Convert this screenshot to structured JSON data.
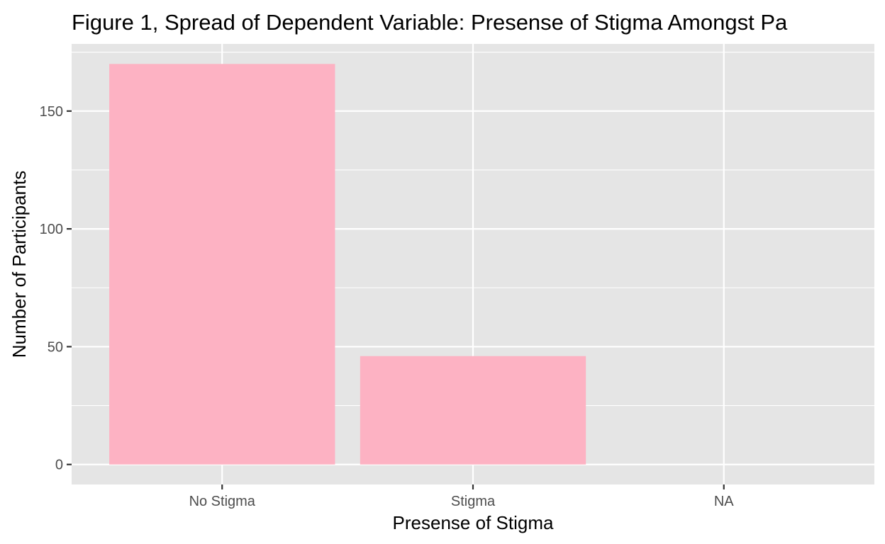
{
  "chart_data": {
    "type": "bar",
    "title": "Figure 1, Spread of Dependent Variable: Presense of Stigma Amongst Pa",
    "xlabel": "Presense of Stigma",
    "ylabel": "Number of Participants",
    "categories": [
      "No Stigma",
      "Stigma",
      "NA"
    ],
    "values": [
      170,
      46,
      0
    ],
    "ylim": [
      -8.5,
      178.5
    ],
    "yticks": [
      0,
      50,
      100,
      150
    ],
    "ytick_labels": [
      "0",
      "50",
      "100",
      "150"
    ],
    "grid": true,
    "legend": "none",
    "colors": {
      "bar": "#FDB2C3",
      "panel": "#E5E5E5",
      "grid": "#FFFFFF",
      "tick_text": "#4D4D4D",
      "tick_mark": "#333333"
    }
  }
}
